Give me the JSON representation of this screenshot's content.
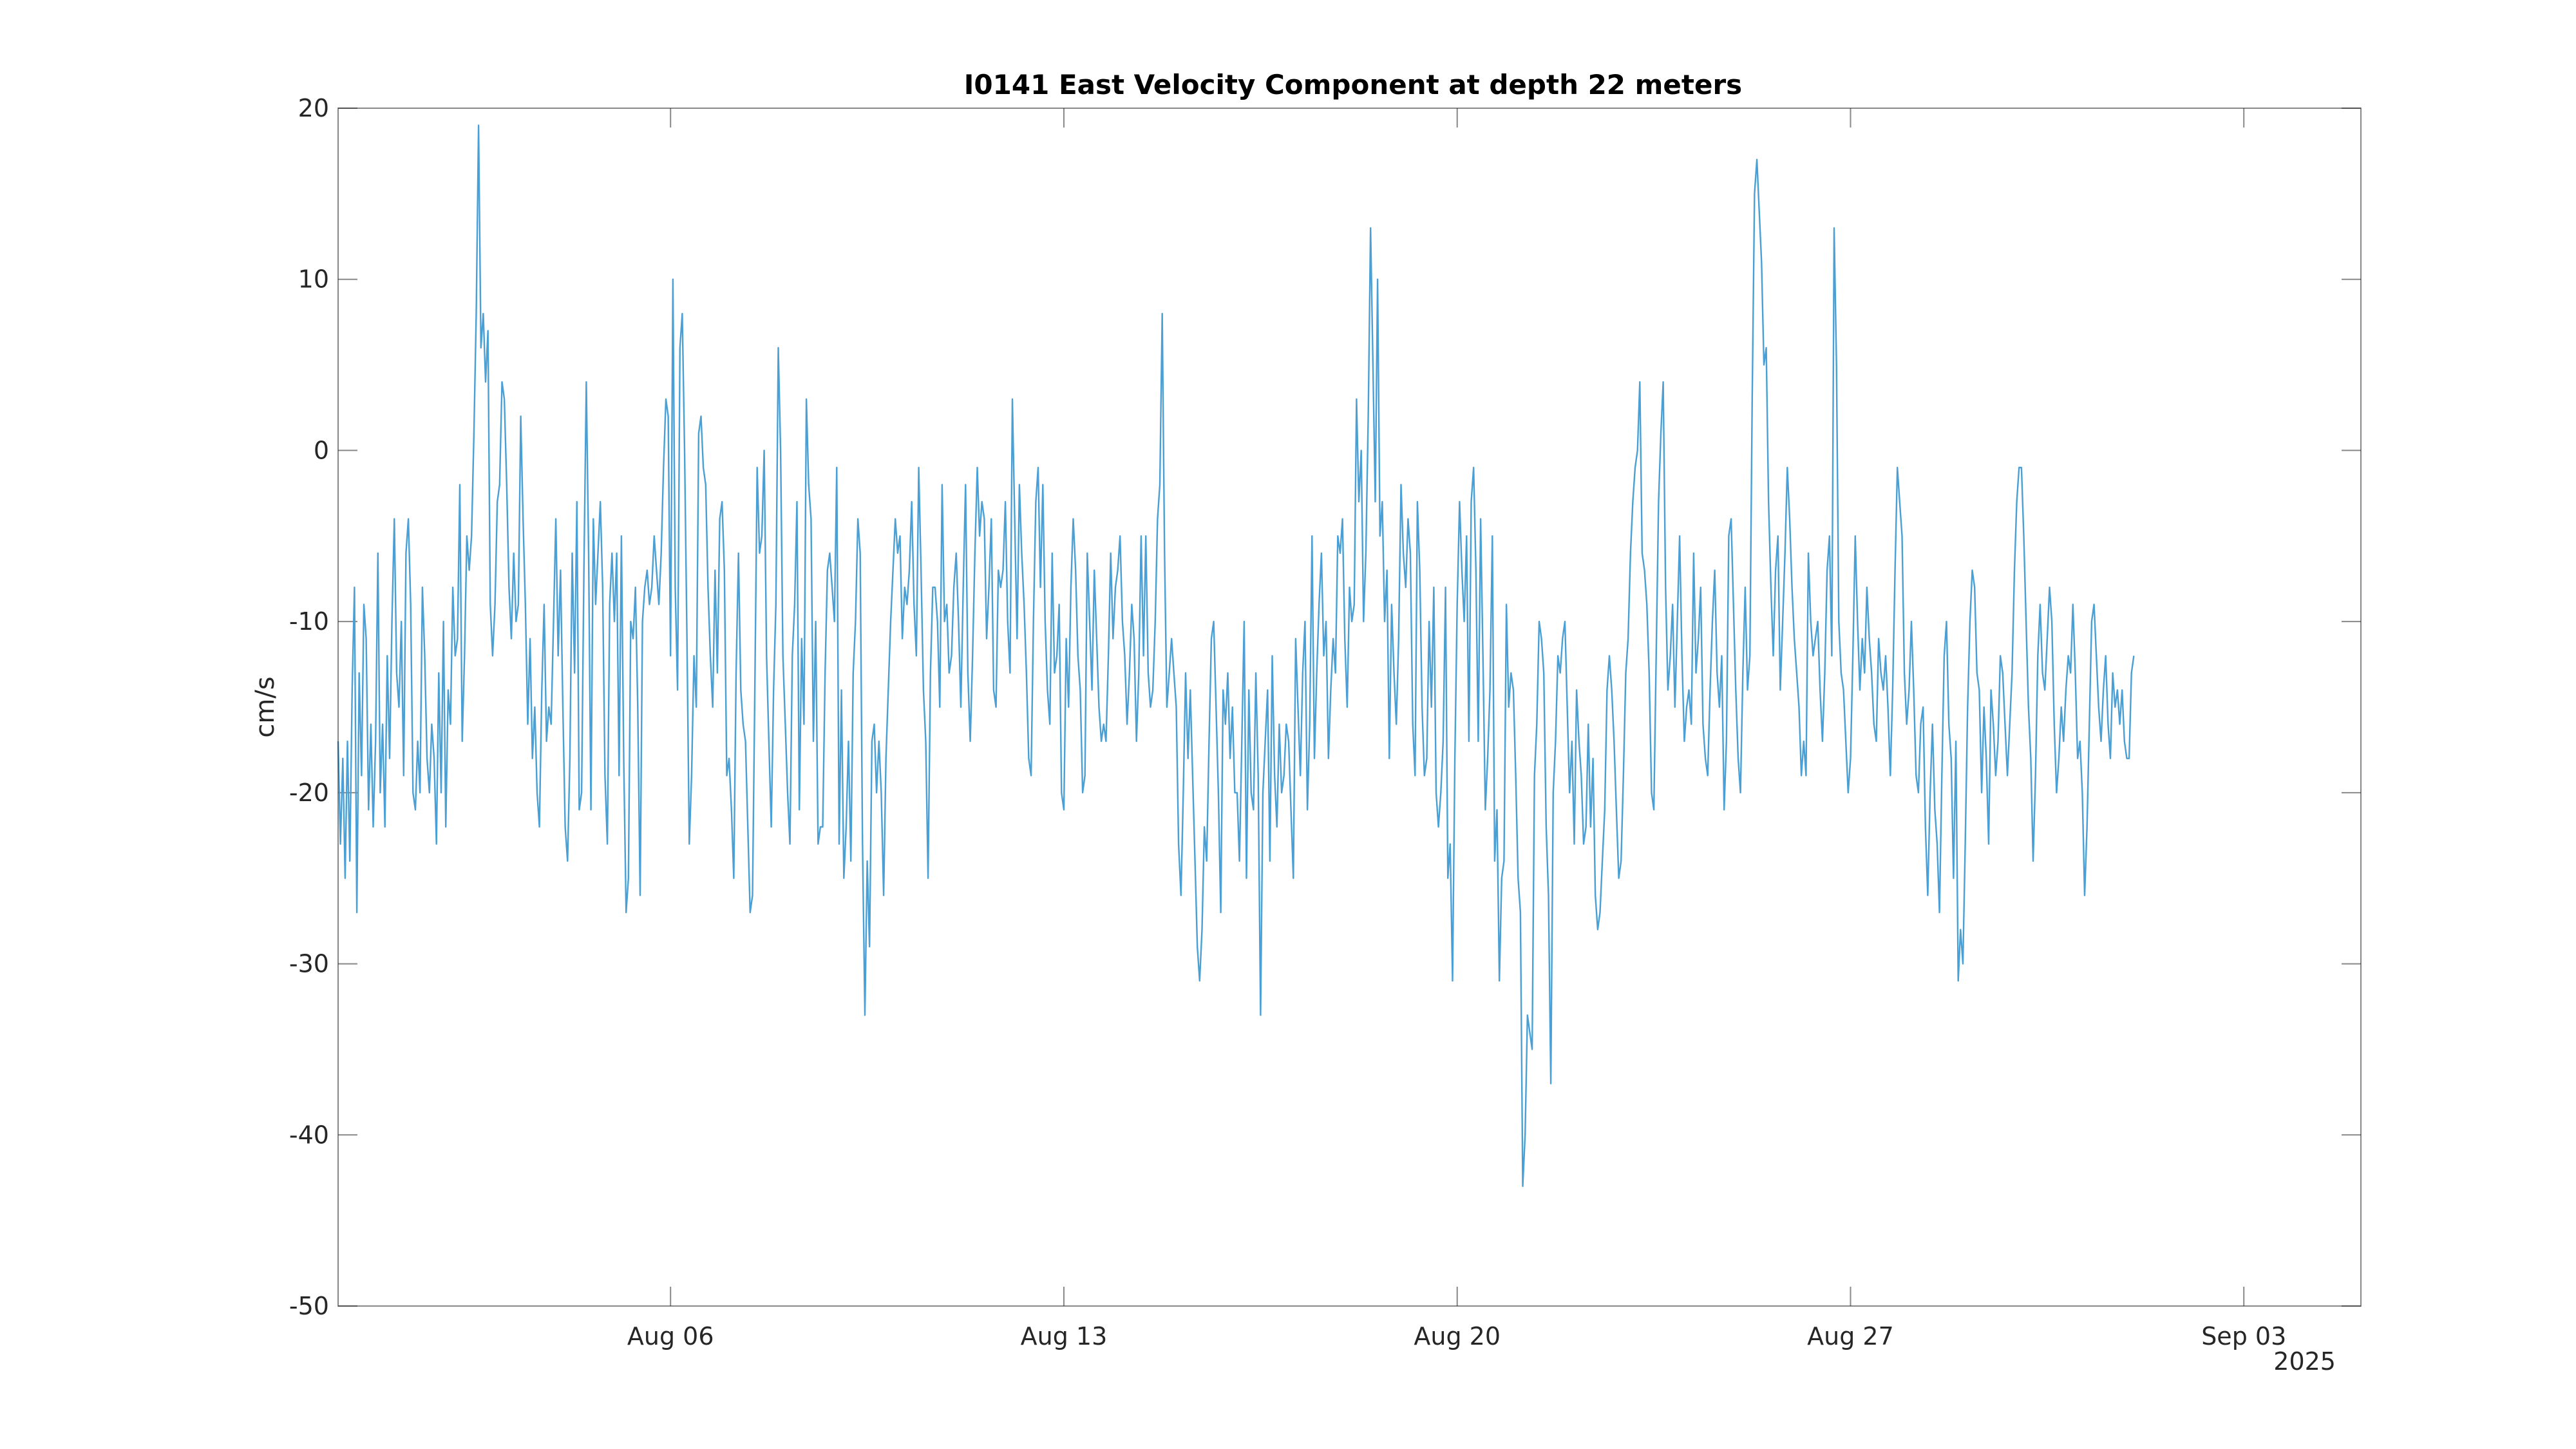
{
  "chart_data": {
    "type": "line",
    "title": "I0141 East Velocity Component at depth 22 meters",
    "xlabel": "",
    "ylabel": "cm/s",
    "x_range": [
      "2025-07-31T02:00",
      "2025-09-05T02:00"
    ],
    "xticks": [
      {
        "date": "2025-08-06",
        "label": "Aug 06"
      },
      {
        "date": "2025-08-13",
        "label": "Aug 13"
      },
      {
        "date": "2025-08-20",
        "label": "Aug 20"
      },
      {
        "date": "2025-08-27",
        "label": "Aug 27"
      },
      {
        "date": "2025-09-03",
        "label": "Sep 03"
      }
    ],
    "x_year_label": "2025",
    "ylim": [
      -50,
      20
    ],
    "yticks": [
      20,
      10,
      0,
      -10,
      -20,
      -30,
      -40,
      -50
    ],
    "ytick_labels": [
      "20",
      "10",
      "0",
      "-10",
      "-20",
      "-30",
      "-40",
      "-50"
    ],
    "grid": false,
    "line_color": "#4a9fd4",
    "series": [
      {
        "sample_interval_hours": 1,
        "x_start": "2025-07-31T02:00",
        "values": [
          -17,
          -23,
          -18,
          -25,
          -17,
          -24,
          -14,
          -8,
          -27,
          -13,
          -19,
          -9,
          -11,
          -21,
          -16,
          -22,
          -17,
          -6,
          -20,
          -16,
          -22,
          -12,
          -18,
          -10,
          -4,
          -13,
          -15,
          -10,
          -19,
          -6,
          -4,
          -9,
          -20,
          -21,
          -17,
          -20,
          -8,
          -12,
          -18,
          -20,
          -16,
          -18,
          -23,
          -13,
          -20,
          -10,
          -22,
          -14,
          -16,
          -8,
          -12,
          -11,
          -2,
          -17,
          -12,
          -5,
          -7,
          -5,
          1,
          8,
          19,
          6,
          8,
          4,
          7,
          -9,
          -12,
          -9,
          -3,
          -2,
          4,
          3,
          -2,
          -8,
          -11,
          -6,
          -10,
          -9,
          2,
          -4,
          -9,
          -16,
          -11,
          -18,
          -15,
          -20,
          -22,
          -14,
          -9,
          -17,
          -15,
          -16,
          -10,
          -4,
          -12,
          -7,
          -15,
          -22,
          -24,
          -18,
          -6,
          -13,
          -3,
          -21,
          -20,
          -7,
          4,
          -6,
          -21,
          -4,
          -9,
          -6,
          -3,
          -8,
          -19,
          -23,
          -9,
          -6,
          -10,
          -6,
          -19,
          -5,
          -18,
          -27,
          -25,
          -10,
          -11,
          -8,
          -15,
          -26,
          -10,
          -8,
          -7,
          -9,
          -8,
          -5,
          -7,
          -9,
          -6,
          -1,
          3,
          2,
          -12,
          10,
          -8,
          -14,
          6,
          8,
          0,
          -11,
          -23,
          -19,
          -12,
          -15,
          1,
          2,
          -1,
          -2,
          -8,
          -12,
          -15,
          -7,
          -13,
          -4,
          -3,
          -7,
          -19,
          -18,
          -21,
          -25,
          -13,
          -6,
          -14,
          -16,
          -17,
          -22,
          -27,
          -26,
          -14,
          -1,
          -6,
          -5,
          0,
          -12,
          -17,
          -22,
          -14,
          -9,
          6,
          0,
          -12,
          -16,
          -20,
          -23,
          -12,
          -9,
          -3,
          -21,
          -11,
          -16,
          3,
          -2,
          -4,
          -17,
          -10,
          -23,
          -22,
          -22,
          -13,
          -7,
          -6,
          -8,
          -10,
          -1,
          -23,
          -14,
          -25,
          -22,
          -17,
          -24,
          -13,
          -10,
          -4,
          -6,
          -23,
          -33,
          -24,
          -29,
          -17,
          -16,
          -20,
          -17,
          -20,
          -26,
          -18,
          -14,
          -10,
          -7,
          -4,
          -6,
          -5,
          -11,
          -8,
          -9,
          -7,
          -3,
          -9,
          -12,
          -1,
          -7,
          -14,
          -17,
          -25,
          -13,
          -8,
          -8,
          -10,
          -15,
          -2,
          -10,
          -9,
          -13,
          -12,
          -8,
          -6,
          -10,
          -15,
          -8,
          -2,
          -13,
          -17,
          -12,
          -6,
          -1,
          -5,
          -3,
          -4,
          -11,
          -8,
          -4,
          -14,
          -15,
          -7,
          -8,
          -7,
          -3,
          -10,
          -13,
          3,
          -4,
          -11,
          -2,
          -6,
          -9,
          -13,
          -18,
          -19,
          -10,
          -3,
          -1,
          -8,
          -2,
          -10,
          -14,
          -16,
          -6,
          -13,
          -12,
          -9,
          -20,
          -21,
          -11,
          -15,
          -8,
          -4,
          -7,
          -12,
          -14,
          -20,
          -19,
          -6,
          -10,
          -14,
          -7,
          -11,
          -15,
          -17,
          -16,
          -17,
          -12,
          -6,
          -11,
          -8,
          -7,
          -5,
          -10,
          -12,
          -16,
          -13,
          -9,
          -11,
          -17,
          -13,
          -5,
          -12,
          -5,
          -13,
          -15,
          -14,
          -10,
          -4,
          -2,
          8,
          -6,
          -15,
          -13,
          -11,
          -13,
          -15,
          -23,
          -26,
          -20,
          -13,
          -18,
          -14,
          -19,
          -24,
          -29,
          -31,
          -28,
          -22,
          -24,
          -17,
          -11,
          -10,
          -15,
          -20,
          -27,
          -14,
          -16,
          -13,
          -18,
          -15,
          -20,
          -20,
          -24,
          -17,
          -10,
          -25,
          -14,
          -20,
          -21,
          -13,
          -19,
          -33,
          -20,
          -17,
          -14,
          -24,
          -12,
          -19,
          -22,
          -16,
          -20,
          -19,
          -16,
          -17,
          -21,
          -25,
          -11,
          -15,
          -19,
          -13,
          -10,
          -21,
          -16,
          -5,
          -18,
          -13,
          -9,
          -6,
          -12,
          -10,
          -18,
          -14,
          -11,
          -13,
          -5,
          -6,
          -4,
          -11,
          -15,
          -8,
          -10,
          -9,
          3,
          -3,
          0,
          -10,
          -6,
          2,
          13,
          5,
          -3,
          10,
          -5,
          -3,
          -10,
          -7,
          -18,
          -9,
          -13,
          -16,
          -11,
          -2,
          -6,
          -8,
          -4,
          -6,
          -16,
          -19,
          -3,
          -7,
          -15,
          -19,
          -18,
          -10,
          -15,
          -8,
          -20,
          -22,
          -20,
          -17,
          -8,
          -25,
          -23,
          -31,
          -18,
          -9,
          -3,
          -7,
          -10,
          -5,
          -17,
          -3,
          -1,
          -7,
          -17,
          -4,
          -12,
          -21,
          -18,
          -14,
          -5,
          -24,
          -21,
          -31,
          -25,
          -24,
          -9,
          -15,
          -13,
          -14,
          -19,
          -25,
          -27,
          -43,
          -40,
          -33,
          -34,
          -35,
          -19,
          -16,
          -10,
          -11,
          -13,
          -22,
          -26,
          -37,
          -20,
          -17,
          -12,
          -13,
          -11,
          -10,
          -15,
          -20,
          -17,
          -23,
          -14,
          -17,
          -19,
          -23,
          -22,
          -16,
          -22,
          -18,
          -26,
          -28,
          -27,
          -24,
          -21,
          -14,
          -12,
          -14,
          -17,
          -21,
          -25,
          -24,
          -19,
          -13,
          -11,
          -6,
          -3,
          -1,
          0,
          4,
          -6,
          -7,
          -9,
          -13,
          -20,
          -21,
          -12,
          -3,
          1,
          4,
          -8,
          -14,
          -12,
          -9,
          -15,
          -10,
          -5,
          -12,
          -17,
          -15,
          -14,
          -16,
          -6,
          -13,
          -11,
          -8,
          -16,
          -18,
          -19,
          -14,
          -10,
          -7,
          -13,
          -15,
          -12,
          -21,
          -17,
          -5,
          -4,
          -9,
          -14,
          -18,
          -20,
          -13,
          -8,
          -14,
          -12,
          3,
          15,
          17,
          14,
          11,
          5,
          6,
          -3,
          -8,
          -12,
          -7,
          -5,
          -14,
          -10,
          -6,
          -1,
          -4,
          -8,
          -11,
          -13,
          -15,
          -19,
          -17,
          -19,
          -6,
          -10,
          -12,
          -11,
          -10,
          -14,
          -17,
          -13,
          -7,
          -5,
          -12,
          13,
          5,
          -10,
          -13,
          -14,
          -17,
          -20,
          -18,
          -12,
          -5,
          -10,
          -14,
          -11,
          -13,
          -8,
          -11,
          -13,
          -16,
          -17,
          -11,
          -13,
          -14,
          -12,
          -15,
          -19,
          -14,
          -7,
          -1,
          -3,
          -5,
          -13,
          -16,
          -14,
          -10,
          -14,
          -19,
          -20,
          -16,
          -15,
          -22,
          -26,
          -20,
          -16,
          -21,
          -23,
          -27,
          -19,
          -12,
          -10,
          -16,
          -18,
          -25,
          -17,
          -31,
          -28,
          -30,
          -23,
          -15,
          -10,
          -7,
          -8,
          -13,
          -14,
          -20,
          -15,
          -18,
          -23,
          -14,
          -16,
          -19,
          -17,
          -12,
          -13,
          -16,
          -19,
          -16,
          -13,
          -7,
          -3,
          -1,
          -1,
          -5,
          -10,
          -15,
          -18,
          -24,
          -19,
          -12,
          -9,
          -13,
          -14,
          -11,
          -8,
          -10,
          -16,
          -20,
          -18,
          -15,
          -17,
          -14,
          -12,
          -13,
          -9,
          -13,
          -18,
          -17,
          -20,
          -26,
          -22,
          -16,
          -10,
          -9,
          -12,
          -15,
          -17,
          -14,
          -12,
          -16,
          -18,
          -13,
          -15,
          -14,
          -16,
          -14,
          -17,
          -18,
          -18,
          -13,
          -12
        ]
      }
    ]
  }
}
